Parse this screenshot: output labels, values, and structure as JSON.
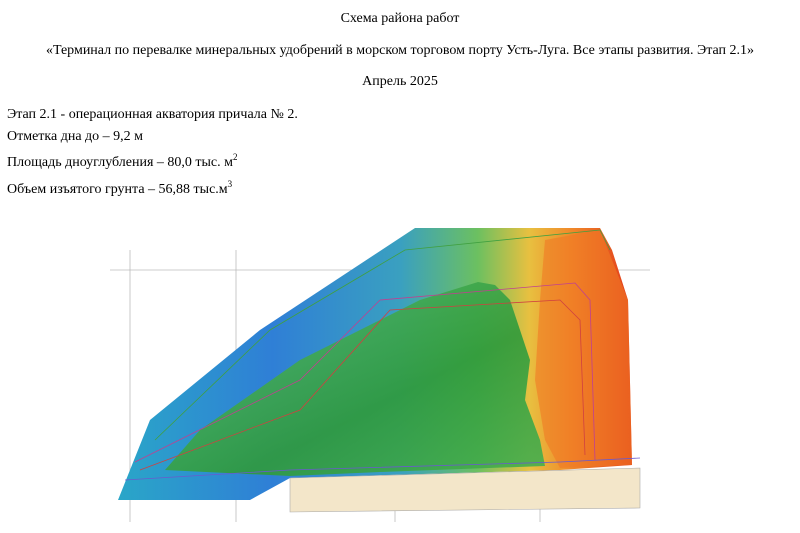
{
  "header": {
    "title": "Схема района работ",
    "subtitle": "«Терминал по перевалке минеральных удобрений в морском торговом порту Усть-Луга. Все этапы развития. Этап 2.1»",
    "date": "Апрель 2025"
  },
  "info": [
    {
      "text": "Этап 2.1 -  операционная акватория причала № 2."
    },
    {
      "text": "Отметка дна до – 9,2  м"
    },
    {
      "text": "Площадь дноуглубления – 80,0 тыс. м",
      "sup": "2"
    },
    {
      "text": "Объем изъятого грунта – 56,88 тыс.м",
      "sup": "3"
    }
  ]
}
